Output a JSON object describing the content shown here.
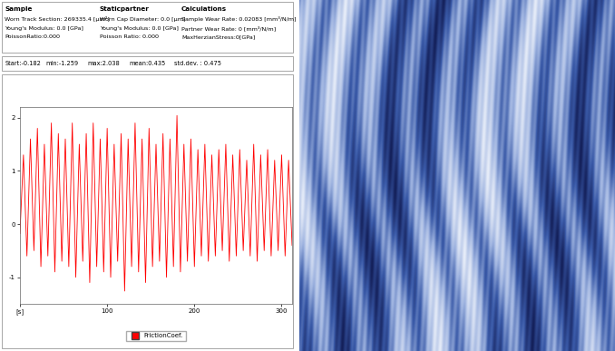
{
  "info_panel": {
    "columns": [
      {
        "title": "Sample",
        "lines": [
          "Worn Track Section: 269335.4 [µm²]",
          "Young's Modulus: 0.0 [GPa]",
          "PoissonRatio:0.000"
        ]
      },
      {
        "title": "Staticpartner",
        "lines": [
          "Worn Cap Diameter: 0.0 [µm]",
          "Young's Modulus: 0.0 [GPa]",
          "Poisson Ratio: 0.000"
        ]
      },
      {
        "title": "Calculations",
        "lines": [
          "Sample Wear Rate: 0.02083 [mm³/N/m]",
          "Partner Wear Rate: 0 [mm³/N/m]",
          "MaxHerzianStress:0[GPa]"
        ]
      }
    ]
  },
  "statistics": [
    "Start:-0.182",
    "min:-1.259",
    "max:2.038",
    "mean:0.435",
    "std.dev. : 0.475"
  ],
  "chart_data": {
    "type": "line",
    "x": [
      0,
      4,
      8,
      12,
      16,
      20,
      24,
      28,
      32,
      36,
      40,
      44,
      48,
      52,
      56,
      60,
      64,
      68,
      72,
      76,
      80,
      84,
      88,
      92,
      96,
      100,
      104,
      108,
      112,
      116,
      120,
      124,
      128,
      132,
      136,
      140,
      144,
      148,
      152,
      156,
      160,
      164,
      168,
      172,
      176,
      180,
      184,
      188,
      192,
      196,
      200,
      204,
      208,
      212,
      216,
      220,
      224,
      228,
      232,
      236,
      240,
      244,
      248,
      252,
      256,
      260,
      264,
      268,
      272,
      276,
      280,
      284,
      288,
      292,
      296,
      300,
      304,
      308,
      312
    ],
    "series": [
      {
        "name": "FrictionCoef.",
        "color": "#ff0000",
        "values": [
          -0.18,
          1.3,
          -0.6,
          1.6,
          -0.5,
          1.8,
          -0.8,
          1.5,
          -0.6,
          1.9,
          -0.9,
          1.7,
          -0.7,
          1.6,
          -0.8,
          1.9,
          -1.0,
          1.5,
          -0.7,
          1.7,
          -1.1,
          1.9,
          -0.8,
          1.6,
          -0.9,
          1.8,
          -1.0,
          1.5,
          -0.7,
          1.7,
          -1.26,
          1.6,
          -0.8,
          1.9,
          -0.9,
          1.6,
          -1.1,
          1.8,
          -0.8,
          1.5,
          -0.7,
          1.7,
          -1.0,
          1.6,
          -0.8,
          2.04,
          -0.9,
          1.5,
          -0.7,
          1.6,
          -0.8,
          1.4,
          -0.6,
          1.5,
          -0.7,
          1.3,
          -0.6,
          1.4,
          -0.5,
          1.5,
          -0.7,
          1.3,
          -0.6,
          1.4,
          -0.5,
          1.2,
          -0.6,
          1.5,
          -0.7,
          1.3,
          -0.5,
          1.4,
          -0.6,
          1.2,
          -0.5,
          1.3,
          -0.6,
          1.2,
          -0.4
        ]
      }
    ],
    "xlim": [
      0,
      312
    ],
    "xticks": [
      {
        "value": 0,
        "label": "[s]"
      },
      100,
      200,
      300
    ],
    "ylim": [
      -1.5,
      2.2
    ],
    "yticks": [
      -1,
      0,
      1,
      2
    ],
    "grid": false,
    "legend": "bottom"
  }
}
